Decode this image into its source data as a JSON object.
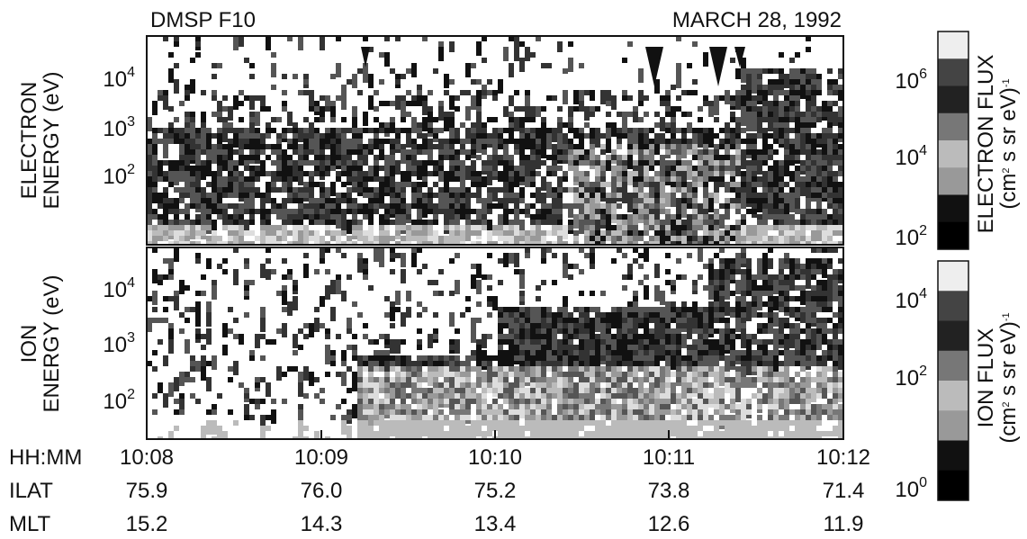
{
  "header": {
    "left": "DMSP F10",
    "right": "MARCH 28, 1992"
  },
  "electron_panel": {
    "label_lines": [
      "ELECTRON",
      "ENERGY (eV)"
    ],
    "ticks": [
      {
        "base": "10",
        "exp": "4"
      },
      {
        "base": "10",
        "exp": "3"
      },
      {
        "base": "10",
        "exp": "2"
      }
    ]
  },
  "ion_panel": {
    "label_lines": [
      "ION",
      "ENERGY (eV)"
    ],
    "ticks": [
      {
        "base": "10",
        "exp": "4"
      },
      {
        "base": "10",
        "exp": "3"
      },
      {
        "base": "10",
        "exp": "2"
      }
    ]
  },
  "electron_colorbar": {
    "label_lines": [
      "ELECTRON FLUX",
      [
        "(cm",
        "2",
        " s  sr  eV)",
        "-1"
      ]
    ],
    "ticks": [
      {
        "base": "10",
        "exp": "6"
      },
      {
        "base": "10",
        "exp": "4"
      },
      {
        "base": "10",
        "exp": "2"
      }
    ]
  },
  "ion_colorbar": {
    "label_lines": [
      "ION FLUX",
      [
        "(cm",
        "2",
        " s  sr  eV)",
        "-1"
      ]
    ],
    "ticks": [
      {
        "base": "10",
        "exp": "4"
      },
      {
        "base": "10",
        "exp": "2"
      },
      {
        "base": "10",
        "exp": "0"
      }
    ]
  },
  "time_axis": {
    "rows": [
      {
        "label": "HH:MM",
        "values": [
          "10:08",
          "10:09",
          "10:10",
          "10:11",
          "10:12"
        ]
      },
      {
        "label": "ILAT",
        "values": [
          "75.9",
          "76.0",
          "75.2",
          "73.8",
          "71.4"
        ]
      },
      {
        "label": "MLT",
        "values": [
          "15.2",
          "14.3",
          "13.4",
          "12.6",
          "11.9"
        ]
      }
    ]
  }
}
